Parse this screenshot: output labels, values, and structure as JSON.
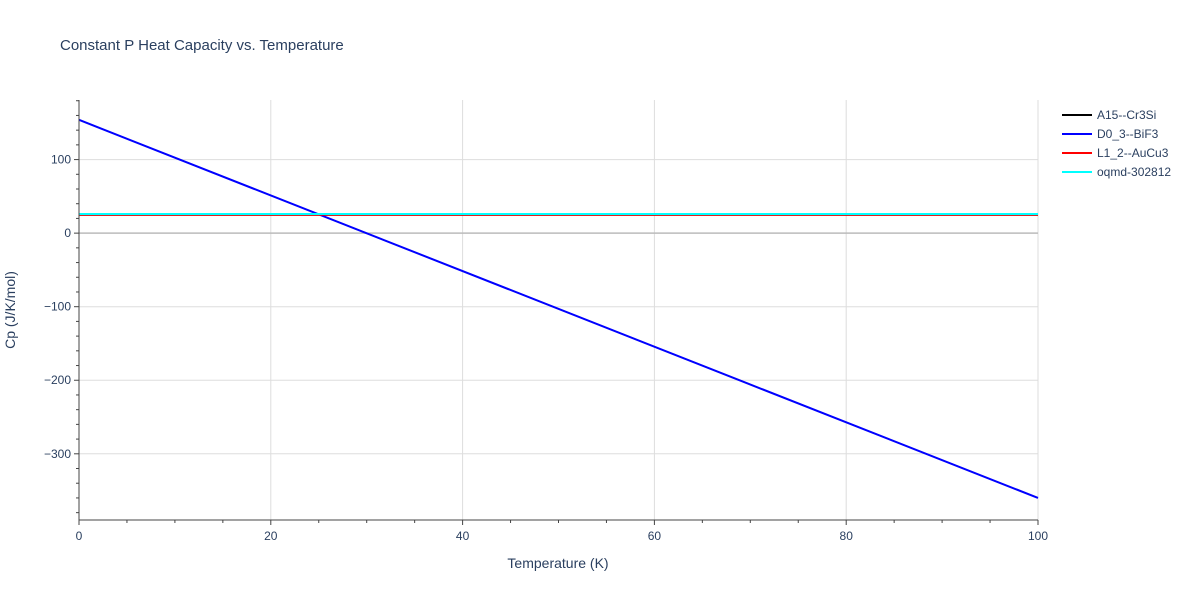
{
  "chart_data": {
    "type": "line",
    "title": "Constant P Heat Capacity vs. Temperature",
    "xlabel": "Temperature (K)",
    "ylabel": "Cp (J/K/mol)",
    "xlim": [
      0,
      100
    ],
    "ylim": [
      -390,
      181
    ],
    "x_ticks": [
      0,
      20,
      40,
      60,
      80,
      100
    ],
    "y_ticks": [
      -300,
      -200,
      -100,
      0,
      100
    ],
    "y_tick_labels": [
      "−300",
      "−200",
      "−100",
      "0",
      "100"
    ],
    "grid": true,
    "legend_position": "top-right",
    "series": [
      {
        "name": "A15--Cr3Si",
        "color": "#000000",
        "x": [
          0,
          100
        ],
        "y": [
          25,
          25
        ]
      },
      {
        "name": "D0_3--BiF3",
        "color": "#0000ff",
        "x": [
          0,
          100
        ],
        "y": [
          154,
          -360
        ]
      },
      {
        "name": "L1_2--AuCu3",
        "color": "#ff0000",
        "x": [
          0,
          100
        ],
        "y": [
          25,
          25
        ]
      },
      {
        "name": "oqmd-302812",
        "color": "#00ffff",
        "x": [
          0,
          100
        ],
        "y": [
          26,
          26
        ]
      }
    ]
  }
}
